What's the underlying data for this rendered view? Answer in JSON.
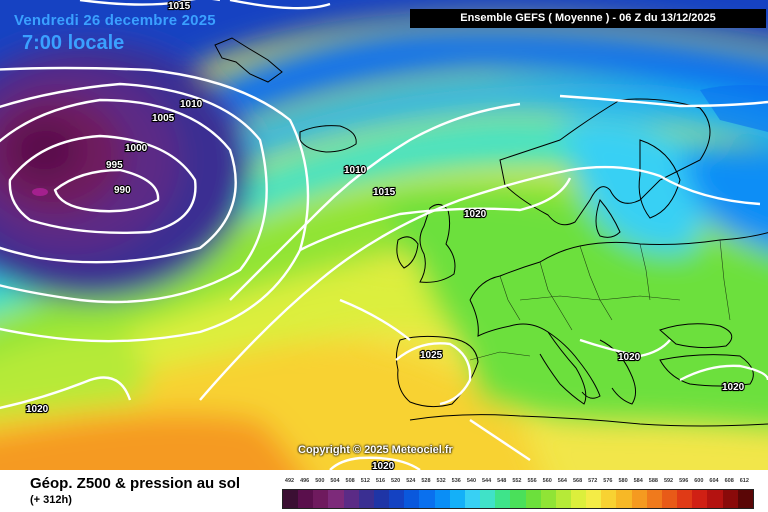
{
  "header": {
    "date": "Vendredi 26 decembre 2025",
    "time": "7:00 locale",
    "model": "Ensemble GEFS  ( Moyenne )  -  06 Z du 13/12/2025"
  },
  "footer": {
    "parameter": "Géop. Z500 & pression au sol",
    "lead_time": "(+ 312h)",
    "copyright": "Copyright © 2025 Meteociel.fr"
  },
  "isobar_labels": {
    "l1015_top": "1015",
    "l1010_nw": "1010",
    "l1005": "1005",
    "l1000": "1000",
    "l995": "995",
    "l990": "990",
    "l1010_mid": "1010",
    "l1015_mid": "1015",
    "l1020_north": "1020",
    "l1025": "1025",
    "l1020_sw": "1020",
    "l1020_balkan": "1020",
    "l1020_east": "1020",
    "l1020_bottom": "1020"
  },
  "legend": {
    "labels": [
      "492",
      "496",
      "500",
      "504",
      "508",
      "512",
      "516",
      "520",
      "524",
      "528",
      "532",
      "536",
      "540",
      "544",
      "548",
      "552",
      "556",
      "560",
      "564",
      "568",
      "572",
      "576",
      "580",
      "584",
      "588",
      "592",
      "596",
      "600",
      "604",
      "608",
      "612"
    ],
    "colors": [
      "#3b0f33",
      "#5a0f4c",
      "#6f1a5e",
      "#7d2a7a",
      "#5b2b86",
      "#3a2f92",
      "#1f35a6",
      "#1442c2",
      "#0a58dc",
      "#0a70ee",
      "#0a8ef6",
      "#14b0f8",
      "#38d0f4",
      "#40e2c8",
      "#3ee48a",
      "#4ae05a",
      "#6ce03c",
      "#90e436",
      "#b6ea38",
      "#dcef3c",
      "#f4ec46",
      "#f8d232",
      "#f7b826",
      "#f59a20",
      "#f07a1c",
      "#e85a18",
      "#e03a16",
      "#d02014",
      "#b41210",
      "#8a0a0a",
      "#5a0606"
    ]
  }
}
